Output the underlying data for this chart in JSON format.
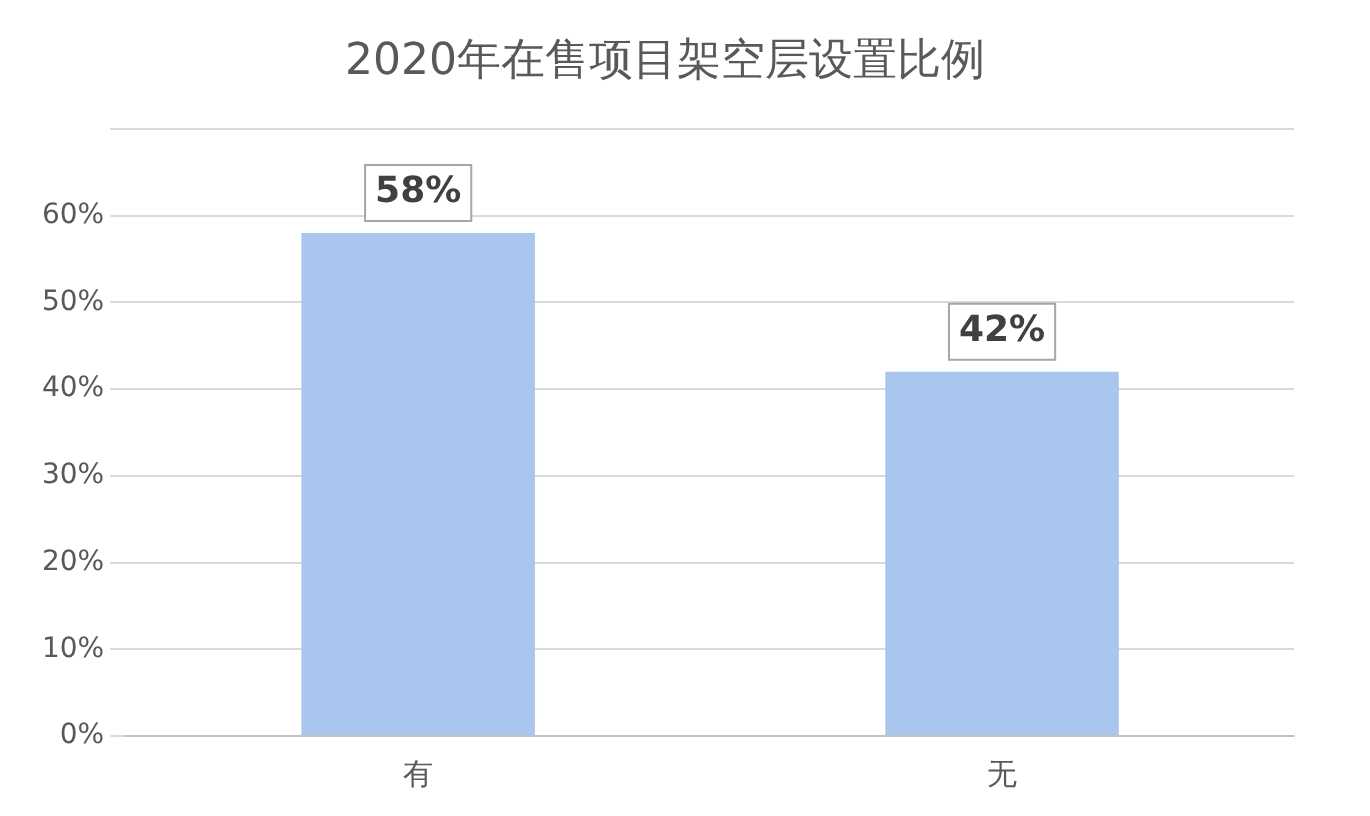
{
  "chart_data": {
    "type": "bar",
    "title": "2020年在售项目架空层设置比例",
    "categories": [
      "有",
      "无"
    ],
    "values": [
      58,
      42
    ],
    "color": "#a9c7ee",
    "value_labels": [
      "58%",
      "42%"
    ],
    "ylim": [
      0,
      70
    ],
    "yticks": [
      {
        "value": 0,
        "label": "0%"
      },
      {
        "value": 10,
        "label": "10%"
      },
      {
        "value": 20,
        "label": "20%"
      },
      {
        "value": 30,
        "label": "30%"
      },
      {
        "value": 40,
        "label": "40%"
      },
      {
        "value": 50,
        "label": "50%"
      },
      {
        "value": 60,
        "label": "60%"
      },
      {
        "value": 70,
        "label": null
      }
    ],
    "grid": "y"
  }
}
